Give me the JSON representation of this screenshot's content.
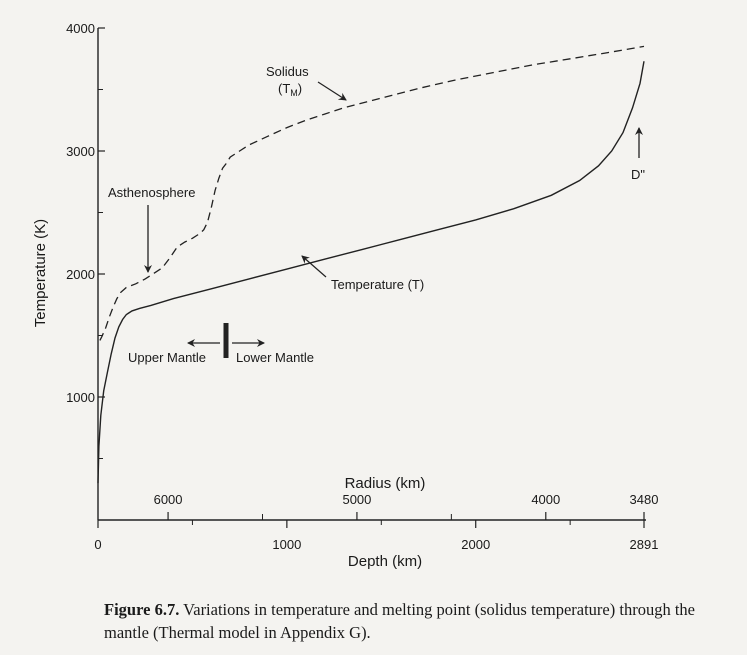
{
  "chart_data": {
    "type": "line",
    "title": "",
    "ylabel": "Temperature (K)",
    "xlabel": "Depth (km)",
    "top_xlabel": "Radius (km)",
    "xlim": [
      0,
      2891
    ],
    "ylim": [
      0,
      4000
    ],
    "x_ticks": [
      0,
      1000,
      2000,
      2891
    ],
    "x_tick_labels": [
      "0",
      "1000",
      "2000",
      "2891"
    ],
    "x_minor_ticks": [
      500,
      1500,
      2500
    ],
    "y_ticks": [
      1000,
      2000,
      3000,
      4000
    ],
    "y_tick_labels": [
      "1000",
      "2000",
      "3000",
      "4000"
    ],
    "y_minor_ticks": [
      500,
      1500,
      2500,
      3500
    ],
    "radius_ticks": [
      {
        "depth": 371,
        "label": "6000"
      },
      {
        "depth": 1371,
        "label": "5000"
      },
      {
        "depth": 2371,
        "label": "4000"
      },
      {
        "depth": 2891,
        "label": "3480"
      }
    ],
    "radius_minor_ticks": [
      871,
      1871
    ],
    "series": [
      {
        "name": "Temperature (T)",
        "style": "solid",
        "x": [
          0,
          5,
          15,
          30,
          50,
          70,
          90,
          110,
          130,
          150,
          180,
          220,
          280,
          400,
          600,
          800,
          1000,
          1200,
          1400,
          1600,
          1800,
          2000,
          2200,
          2400,
          2550,
          2650,
          2720,
          2780,
          2830,
          2870,
          2891
        ],
        "y": [
          300,
          600,
          850,
          1050,
          1200,
          1350,
          1480,
          1570,
          1630,
          1670,
          1700,
          1720,
          1745,
          1800,
          1880,
          1960,
          2040,
          2120,
          2200,
          2280,
          2360,
          2440,
          2530,
          2640,
          2760,
          2880,
          3000,
          3150,
          3350,
          3550,
          3730
        ]
      },
      {
        "name": "Solidus (T_M)",
        "style": "dashed",
        "x": [
          10,
          20,
          40,
          60,
          80,
          100,
          120,
          150,
          200,
          250,
          300,
          340,
          380,
          420,
          460,
          500,
          540,
          560,
          580,
          600,
          620,
          640,
          660,
          680,
          700,
          750,
          800,
          900,
          1000,
          1100,
          1200,
          1300,
          1500,
          1700,
          1900,
          2100,
          2300,
          2500,
          2700,
          2891
        ],
        "y": [
          1460,
          1490,
          1560,
          1650,
          1730,
          1800,
          1850,
          1890,
          1920,
          1960,
          2010,
          2050,
          2130,
          2220,
          2260,
          2290,
          2330,
          2360,
          2420,
          2540,
          2680,
          2780,
          2860,
          2900,
          2950,
          3000,
          3050,
          3120,
          3190,
          3250,
          3300,
          3350,
          3430,
          3510,
          3580,
          3640,
          3700,
          3750,
          3800,
          3850
        ]
      }
    ],
    "annotations": {
      "solidus_line1": "Solidus",
      "solidus_T": "(T",
      "solidus_sub": "M",
      "solidus_close": ")",
      "asthenosphere": "Asthenosphere",
      "temperature": "Temperature  (T)",
      "upper_mantle": "Upper Mantle",
      "lower_mantle": "Lower Mantle",
      "d_double_prime": "D\""
    }
  },
  "caption": {
    "label": "Figure 6.7.",
    "text": " Variations in temperature and melting point (solidus temperature) through the mantle (Thermal model in Appendix G)."
  }
}
